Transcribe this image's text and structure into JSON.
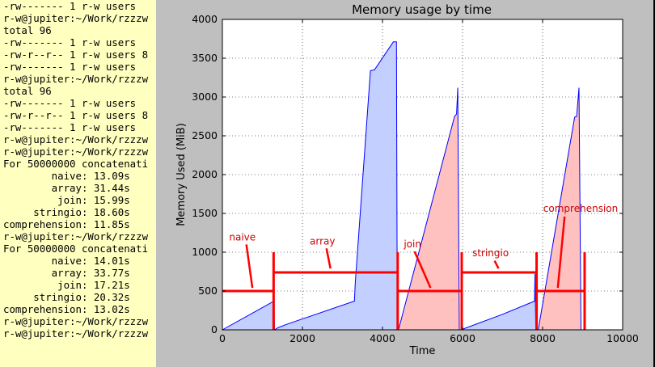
{
  "terminal": {
    "lines": [
      "-rw------- 1 r-w users",
      "r-w@jupiter:~/Work/rzzzw",
      "total 96",
      "-rw------- 1 r-w users",
      "-rw-r--r-- 1 r-w users 8",
      "-rw------- 1 r-w users",
      "r-w@jupiter:~/Work/rzzzw",
      "total 96",
      "-rw------- 1 r-w users",
      "-rw-r--r-- 1 r-w users 8",
      "-rw------- 1 r-w users",
      "r-w@jupiter:~/Work/rzzzw",
      "r-w@jupiter:~/Work/rzzzw",
      "For 50000000 concatenati",
      "        naive: 13.09s",
      "        array: 31.44s",
      "         join: 15.99s",
      "     stringio: 18.60s",
      "comprehension: 11.85s",
      "r-w@jupiter:~/Work/rzzzw",
      "For 50000000 concatenati",
      "        naive: 14.01s",
      "        array: 33.77s",
      "         join: 17.21s",
      "     stringio: 20.32s",
      "comprehension: 13.02s",
      "r-w@jupiter:~/Work/rzzzw",
      "r-w@jupiter:~/Work/rzzzw"
    ]
  },
  "colors": {
    "terminal_bg": "#ffffc0",
    "window_bg": "#bfbfbf",
    "blue_fill": "#c3cfff",
    "blue_line": "#0000ff",
    "red_fill": "#ffc0c0",
    "red_marker": "#ff0000",
    "annotation_text": "#cc0000"
  },
  "chart_data": {
    "type": "area",
    "title": "Memory usage by time",
    "xlabel": "Time",
    "ylabel": "Memory Used (MiB)",
    "xlim": [
      0,
      10000
    ],
    "ylim": [
      0,
      4000
    ],
    "xticks": [
      0,
      2000,
      4000,
      6000,
      8000,
      10000
    ],
    "yticks": [
      0,
      500,
      1000,
      1500,
      2000,
      2500,
      3000,
      3500,
      4000
    ],
    "grid": true,
    "series": [
      {
        "color": "blue",
        "points": [
          [
            0,
            0
          ],
          [
            1290,
            370
          ],
          [
            1300,
            0
          ],
          [
            1400,
            30
          ],
          [
            1600,
            70
          ],
          [
            3300,
            370
          ],
          [
            3320,
            600
          ],
          [
            3700,
            3340
          ],
          [
            3800,
            3350
          ],
          [
            4270,
            3710
          ],
          [
            4350,
            3710
          ],
          [
            4370,
            0
          ]
        ]
      },
      {
        "color": "red",
        "points": [
          [
            4400,
            0
          ],
          [
            5800,
            2750
          ],
          [
            5850,
            2780
          ],
          [
            5880,
            3120
          ],
          [
            5920,
            0
          ]
        ]
      },
      {
        "color": "blue",
        "points": [
          [
            5960,
            0
          ],
          [
            7000,
            200
          ],
          [
            7800,
            370
          ],
          [
            7810,
            720
          ],
          [
            7830,
            0
          ]
        ]
      },
      {
        "color": "red",
        "points": [
          [
            7890,
            0
          ],
          [
            8800,
            2740
          ],
          [
            8850,
            2750
          ],
          [
            8910,
            3120
          ],
          [
            8960,
            0
          ]
        ]
      }
    ],
    "segments": [
      {
        "label": "naive",
        "x0": 0,
        "x1": 1280,
        "level": 500,
        "label_xy": [
          500,
          1150
        ],
        "arrow_from": [
          600,
          1100
        ],
        "arrow_to": [
          750,
          540
        ]
      },
      {
        "label": "array",
        "x0": 1280,
        "x1": 4380,
        "level": 740,
        "label_xy": [
          2500,
          1100
        ],
        "arrow_from": [
          2600,
          1050
        ],
        "arrow_to": [
          2700,
          790
        ]
      },
      {
        "label": "join",
        "x0": 4380,
        "x1": 5980,
        "level": 500,
        "label_xy": [
          4750,
          1060
        ],
        "arrow_from": [
          4800,
          1010
        ],
        "arrow_to": [
          5200,
          540
        ]
      },
      {
        "label": "stringio",
        "x0": 5980,
        "x1": 7850,
        "level": 740,
        "label_xy": [
          6700,
          950
        ],
        "arrow_from": [
          6800,
          890
        ],
        "arrow_to": [
          6900,
          790
        ]
      },
      {
        "label": "comprehension",
        "x0": 7850,
        "x1": 9050,
        "level": 500,
        "label_xy": [
          8950,
          1520
        ],
        "arrow_from": [
          8550,
          1460
        ],
        "arrow_to": [
          8380,
          540
        ]
      }
    ],
    "segment_bounds": [
      1280,
      4380,
      5980,
      7850,
      9050
    ],
    "boundary_top": 1000
  }
}
